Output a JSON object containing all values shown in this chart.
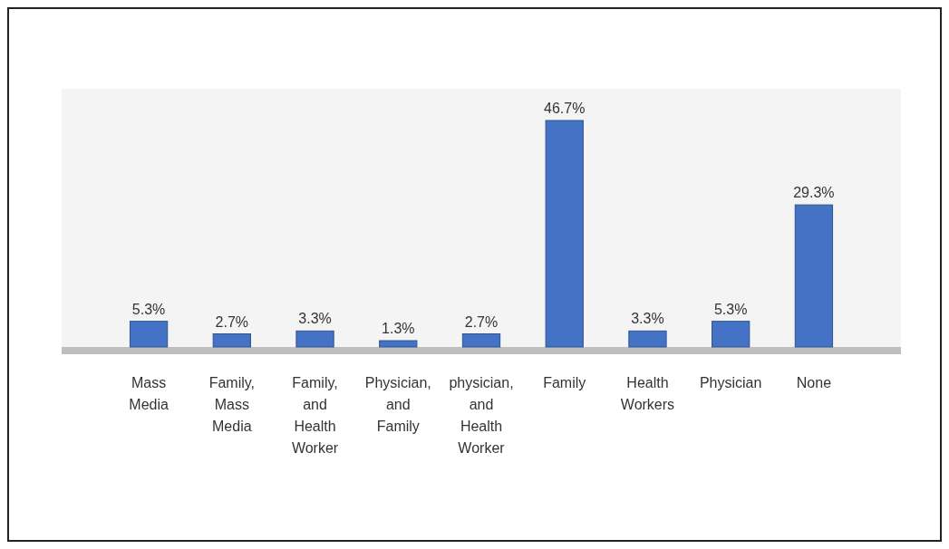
{
  "chart_data": {
    "type": "bar",
    "categories": [
      "Mass Media",
      "Family, Mass Media",
      "Family, and Health Worker",
      "Physician, and Family",
      "physician, and Health Worker",
      "Family",
      "Health Workers",
      "Physician",
      "None"
    ],
    "values": [
      5.3,
      2.7,
      3.3,
      1.3,
      2.7,
      46.7,
      3.3,
      5.3,
      29.3
    ],
    "color": "#4472c4",
    "value_labels": [
      "5.3%",
      "2.7%",
      "3.3%",
      "1.3%",
      "2.7%",
      "46.7%",
      "3.3%",
      "5.3%",
      "29.3%"
    ]
  }
}
